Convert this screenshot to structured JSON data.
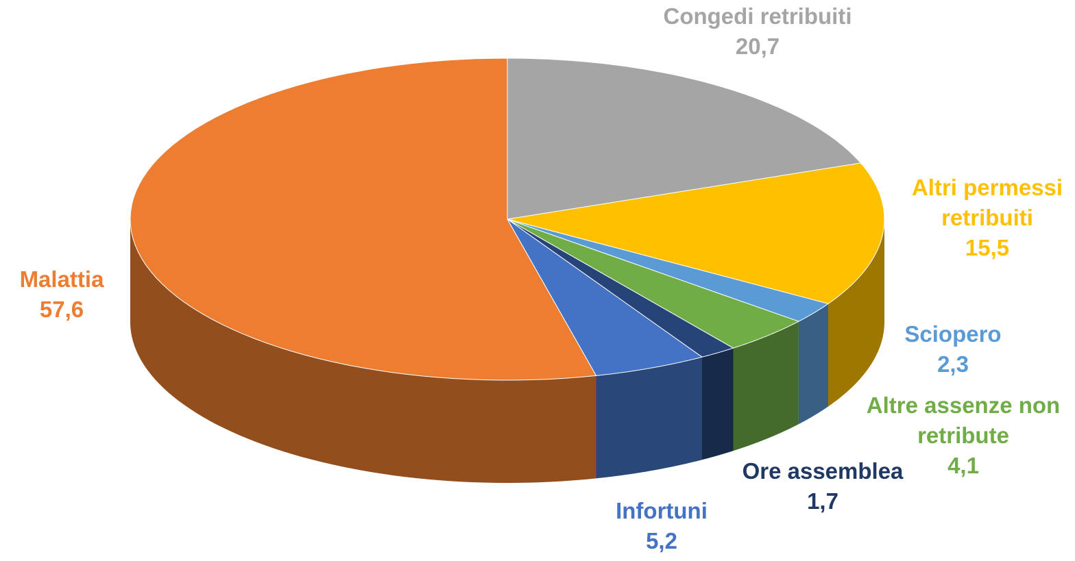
{
  "chart_data": {
    "type": "pie",
    "categories": [
      "Congedi retribuiti",
      "Altri permessi retribuiti",
      "Sciopero",
      "Altre assenze non retribute",
      "Ore assemblea",
      "Infortuni",
      "Malattia"
    ],
    "values": [
      20.7,
      15.5,
      2.3,
      4.1,
      1.7,
      5.2,
      57.6
    ],
    "value_labels": [
      "20,7",
      "15,5",
      "2,3",
      "4,1",
      "1,7",
      "5,2",
      "57,6"
    ],
    "colors": [
      "#a5a5a5",
      "#ffc000",
      "#5b9bd5",
      "#70ad47",
      "#264478",
      "#4472c4",
      "#ed7d31"
    ],
    "label_colors": [
      "#a5a5a5",
      "#ffc000",
      "#5b9bd5",
      "#70ad47",
      "#1f3864",
      "#4472c4",
      "#ed7d31"
    ]
  }
}
